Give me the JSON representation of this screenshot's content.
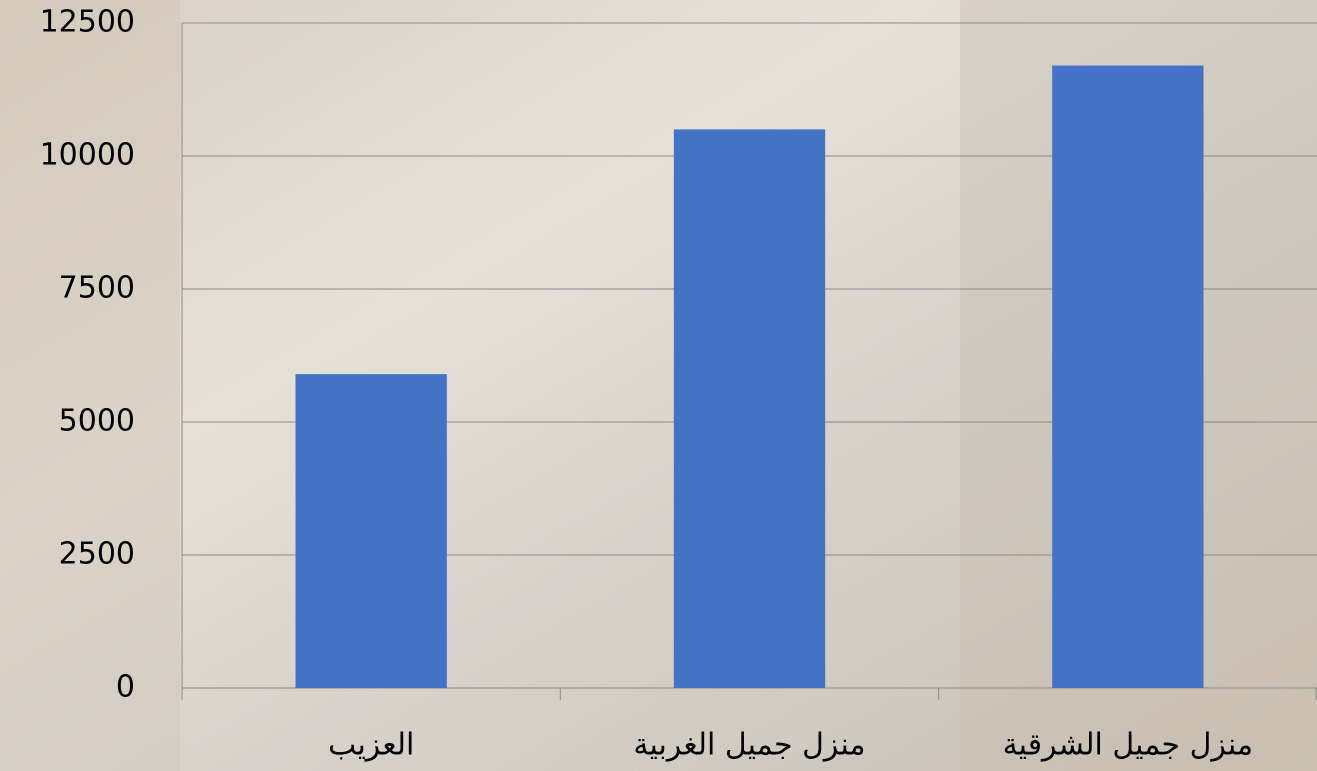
{
  "chart_data": {
    "type": "bar",
    "categories": [
      "العزيب",
      "منزل جميل الغربية",
      "منزل جميل الشرقية"
    ],
    "values": [
      5900,
      10500,
      11700
    ],
    "color": "#4472c4",
    "ylim": [
      0,
      12500
    ],
    "yticks": [
      0,
      2500,
      5000,
      7500,
      10000,
      12500
    ],
    "grid": true
  }
}
